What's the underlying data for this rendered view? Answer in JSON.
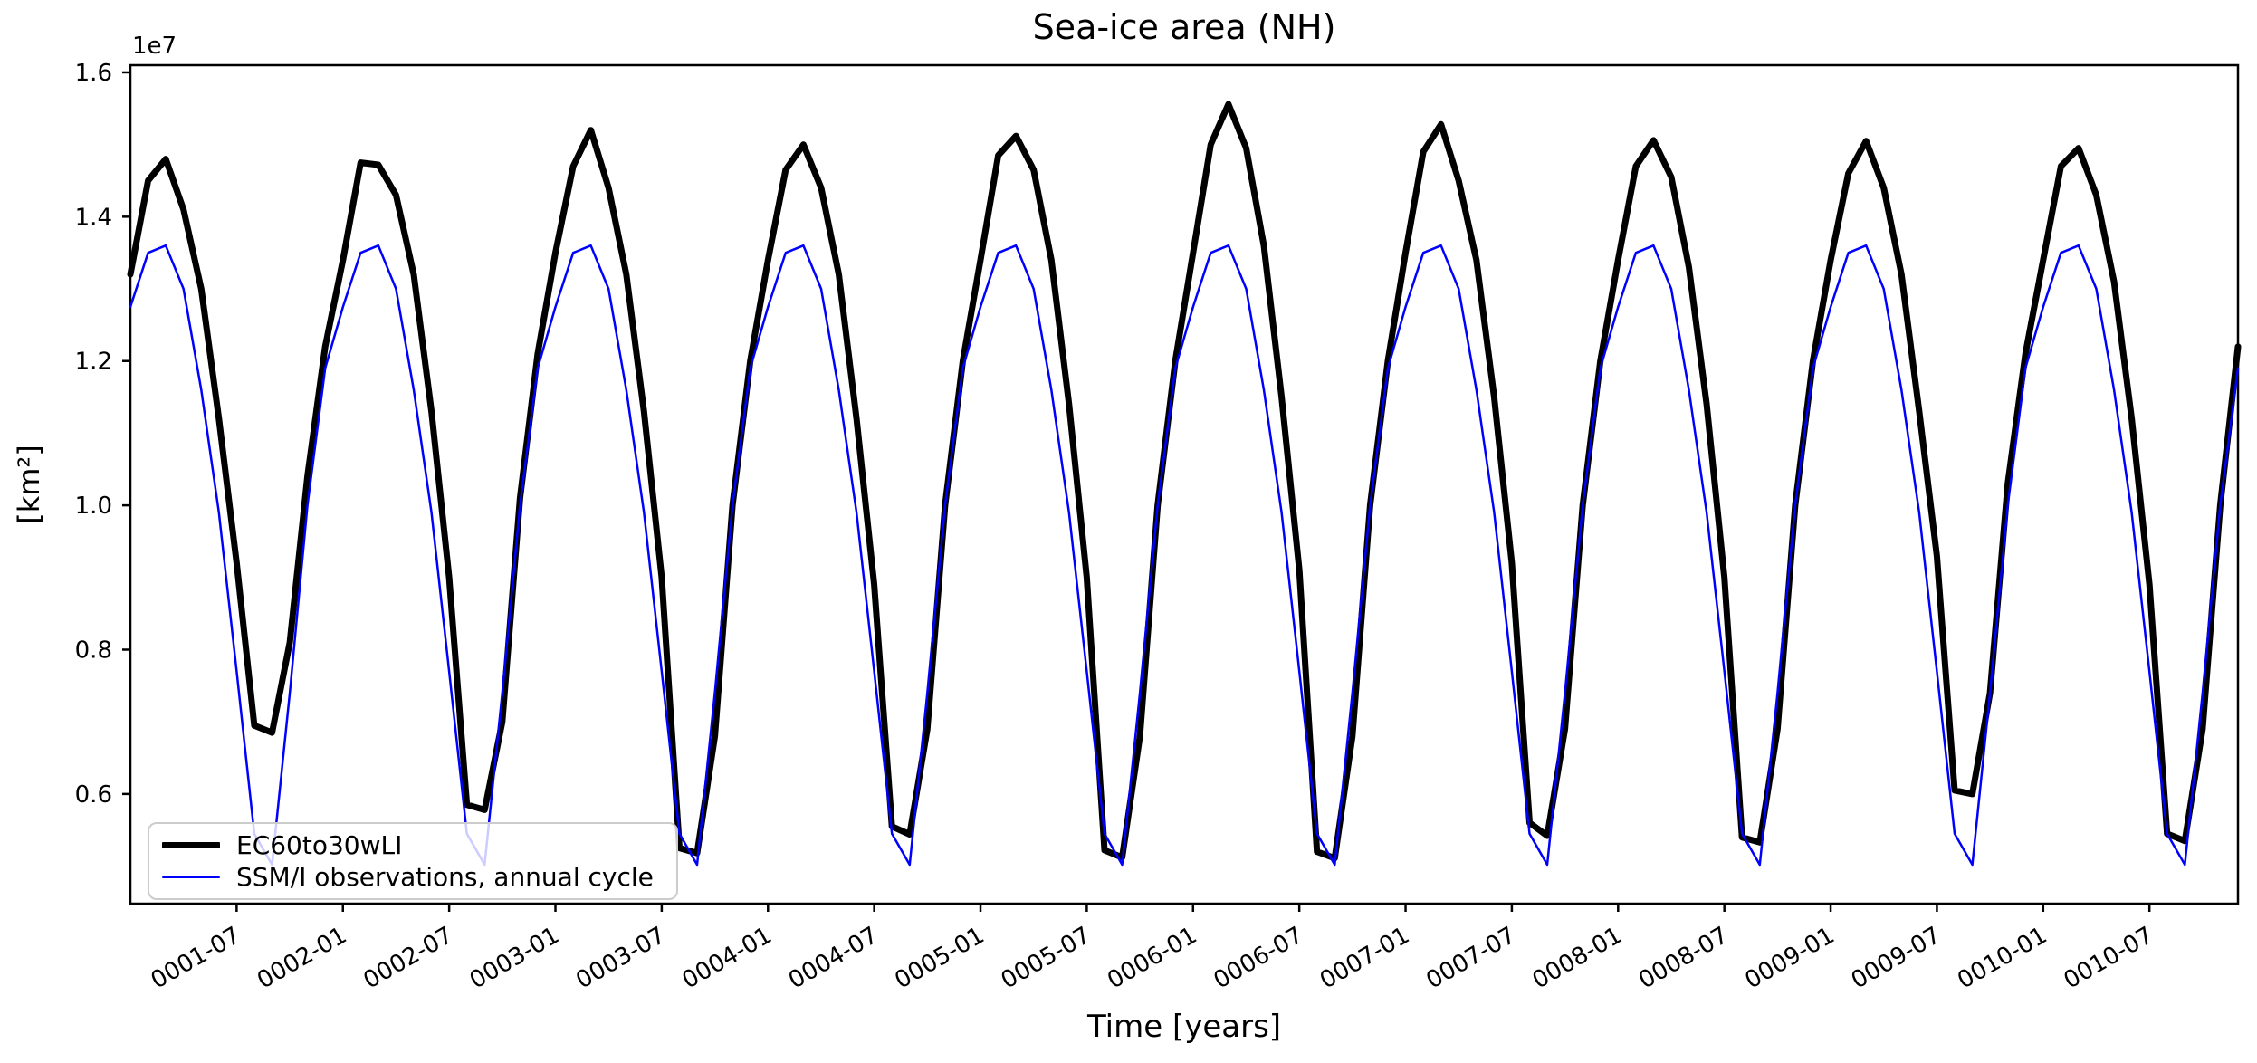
{
  "figure": {
    "title": "Sea-ice area (NH)",
    "xlabel": "Time [years]",
    "ylabel": "[km²]",
    "y_offset_label": "1e7",
    "background_color": "#ffffff",
    "axes_color": "#000000"
  },
  "legend": {
    "position": "lower left",
    "entries": [
      {
        "label": "EC60to30wLI",
        "color": "#000000",
        "linewidth": 7
      },
      {
        "label": "SSM/I observations, annual cycle",
        "color": "#0000ff",
        "linewidth": 2.5
      }
    ]
  },
  "chart_data": {
    "type": "line",
    "title": "Sea-ice area (NH)",
    "xlabel": "Time [years]",
    "ylabel": "[km²]",
    "y_offset_label": "1e7",
    "grid": false,
    "legend_position": "lower left",
    "x_start": "0001-01",
    "x_end": "0010-12",
    "n_points": 120,
    "x_ticklabel_rotation_deg": 30,
    "x_ticklabels": [
      "0001-07",
      "0002-01",
      "0002-07",
      "0003-01",
      "0003-07",
      "0004-01",
      "0004-07",
      "0005-01",
      "0005-07",
      "0006-01",
      "0006-07",
      "0007-01",
      "0007-07",
      "0008-01",
      "0008-07",
      "0009-01",
      "0009-07",
      "0010-01",
      "0010-07"
    ],
    "x_tick_month_indices": [
      6,
      12,
      18,
      24,
      30,
      36,
      42,
      48,
      54,
      60,
      66,
      72,
      78,
      84,
      90,
      96,
      102,
      108,
      114
    ],
    "y_ticklabels": [
      "0.6",
      "0.8",
      "1.0",
      "1.2",
      "1.4",
      "1.6"
    ],
    "y_tick_values_km2": [
      6000000,
      8000000,
      10000000,
      12000000,
      14000000,
      16000000
    ],
    "ylim_km2": [
      4480000,
      16100000
    ],
    "series": [
      {
        "name": "EC60to30wLI",
        "color": "#000000",
        "linewidth": 7,
        "values_km2": [
          13200000,
          14500000,
          14800000,
          14100000,
          13000000,
          11200000,
          9200000,
          6950000,
          6850000,
          8100000,
          10400000,
          12200000,
          13400000,
          14750000,
          14720000,
          14300000,
          13200000,
          11300000,
          9000000,
          5850000,
          5780000,
          7000000,
          10100000,
          12100000,
          13500000,
          14700000,
          15200000,
          14400000,
          13200000,
          11300000,
          9000000,
          5250000,
          5180000,
          6800000,
          10000000,
          12000000,
          13400000,
          14650000,
          15000000,
          14400000,
          13200000,
          11200000,
          8900000,
          5550000,
          5440000,
          6900000,
          10000000,
          12000000,
          13400000,
          14850000,
          15120000,
          14650000,
          13400000,
          11400000,
          9000000,
          5220000,
          5120000,
          6800000,
          10000000,
          12000000,
          13500000,
          15000000,
          15560000,
          14950000,
          13600000,
          11500000,
          9100000,
          5200000,
          5110000,
          6800000,
          10000000,
          12000000,
          13500000,
          14900000,
          15280000,
          14500000,
          13400000,
          11500000,
          9200000,
          5600000,
          5420000,
          6900000,
          10000000,
          12000000,
          13400000,
          14700000,
          15060000,
          14550000,
          13300000,
          11400000,
          9000000,
          5400000,
          5330000,
          6900000,
          10000000,
          12000000,
          13400000,
          14600000,
          15050000,
          14400000,
          13200000,
          11300000,
          9300000,
          6050000,
          6000000,
          7400000,
          10300000,
          12100000,
          13400000,
          14700000,
          14950000,
          14300000,
          13100000,
          11200000,
          8900000,
          5450000,
          5350000,
          6900000,
          10000000,
          12200000
        ]
      },
      {
        "name": "SSM/I observations, annual cycle",
        "color": "#0000ff",
        "linewidth": 2.5,
        "annual_cycle_km2": [
          12750000,
          13500000,
          13600000,
          13000000,
          11600000,
          9900000,
          7700000,
          5450000,
          5020000,
          7400000,
          10000000,
          11900000
        ],
        "repeat_years": 10
      }
    ]
  }
}
